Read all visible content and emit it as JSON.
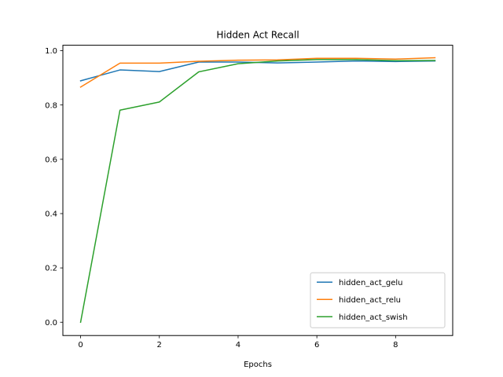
{
  "chart_data": {
    "type": "line",
    "title": "Hidden Act Recall",
    "xlabel": "Epochs",
    "ylabel": "",
    "x": [
      0,
      1,
      2,
      3,
      4,
      5,
      6,
      7,
      8,
      9
    ],
    "xlim": [
      -0.45,
      9.45
    ],
    "ylim": [
      -0.049,
      1.02
    ],
    "xticks": [
      0,
      2,
      4,
      6,
      8
    ],
    "yticks": [
      0.0,
      0.2,
      0.4,
      0.6,
      0.8,
      1.0
    ],
    "xtick_labels": [
      "0",
      "2",
      "4",
      "6",
      "8"
    ],
    "ytick_labels": [
      "0.0",
      "0.2",
      "0.4",
      "0.6",
      "0.8",
      "1.0"
    ],
    "grid": false,
    "legend_position": "lower-right",
    "series": [
      {
        "name": "hidden_act_gelu",
        "color": "#1f77b4",
        "values": [
          0.889,
          0.929,
          0.923,
          0.958,
          0.958,
          0.955,
          0.958,
          0.962,
          0.96,
          0.962
        ]
      },
      {
        "name": "hidden_act_relu",
        "color": "#ff7f0e",
        "values": [
          0.866,
          0.954,
          0.954,
          0.961,
          0.965,
          0.966,
          0.972,
          0.972,
          0.969,
          0.974
        ]
      },
      {
        "name": "hidden_act_swish",
        "color": "#2ca02c",
        "values": [
          0.0,
          0.781,
          0.811,
          0.922,
          0.952,
          0.962,
          0.967,
          0.967,
          0.963,
          0.964
        ]
      }
    ]
  }
}
